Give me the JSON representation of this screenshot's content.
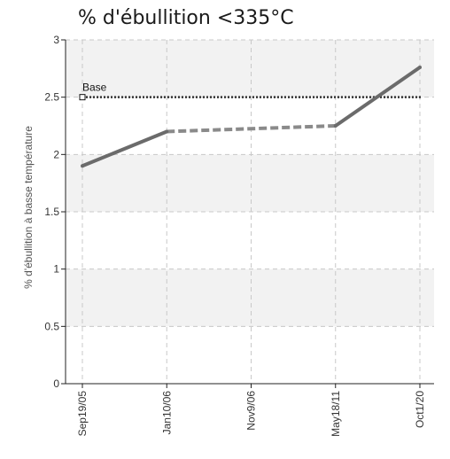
{
  "chart_data": {
    "type": "line",
    "title": "% d'ébullition <335°C",
    "ylabel": "% d'ébullition à basse température",
    "xlabel": "",
    "categories": [
      "Sep19/05",
      "Jan10/06",
      "Nov9/06",
      "May18/11",
      "Oct1/20"
    ],
    "ylim": [
      0,
      3
    ],
    "yticks": [
      "0",
      "0.5",
      "1",
      "1.5",
      "2",
      "2.5",
      "3"
    ],
    "grid": true,
    "series": [
      {
        "points": [
          {
            "x": "Sep19/05",
            "y": 1.9
          },
          {
            "x": "Jan10/06",
            "y": 2.2
          },
          {
            "x": "May18/11",
            "y": 2.25
          },
          {
            "x": "Oct1/20",
            "y": 2.76
          }
        ],
        "segment_styles": [
          "solid",
          "dashed",
          "solid"
        ],
        "color": "#6b6b6b"
      }
    ],
    "reference_line": {
      "label": "Base",
      "value": 2.5,
      "style": "dotted",
      "color": "#333333"
    },
    "band_colors": [
      "#f2f2f2",
      "#ffffff"
    ]
  }
}
